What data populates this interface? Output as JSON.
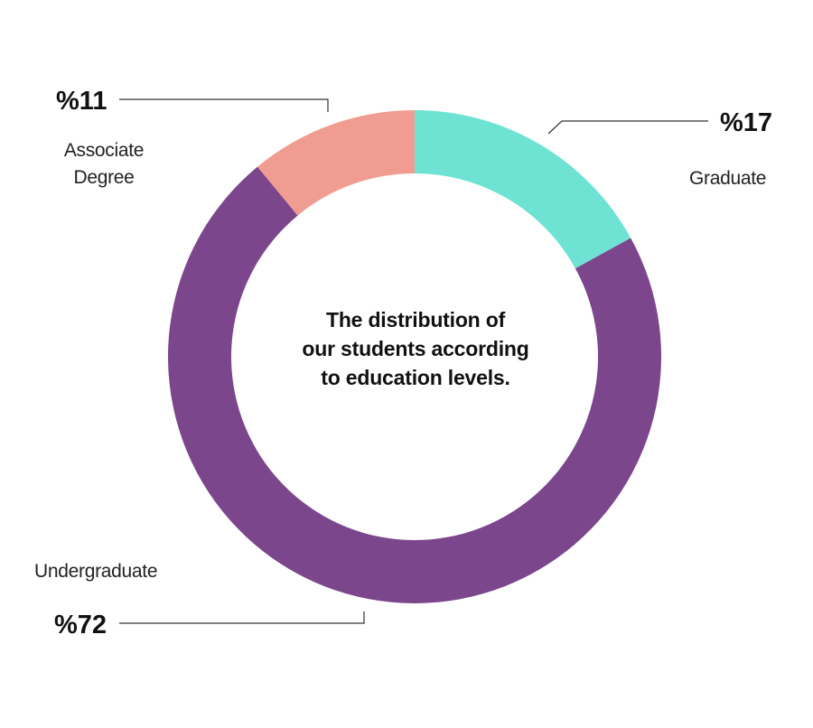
{
  "chart_data": {
    "type": "pie",
    "donut": true,
    "center_text": [
      "The distribution of",
      "our students according",
      "to education levels."
    ],
    "slices": [
      {
        "label": "Graduate",
        "value": 17,
        "value_label": "%17",
        "color": "#6ee3d3"
      },
      {
        "label": "Undergraduate",
        "value": 72,
        "value_label": "%72",
        "color": "#7b468c"
      },
      {
        "label": "Associate\nDegree",
        "value": 11,
        "value_label": "%11",
        "color": "#f19c90"
      }
    ],
    "leader_line_color": "#333333"
  }
}
